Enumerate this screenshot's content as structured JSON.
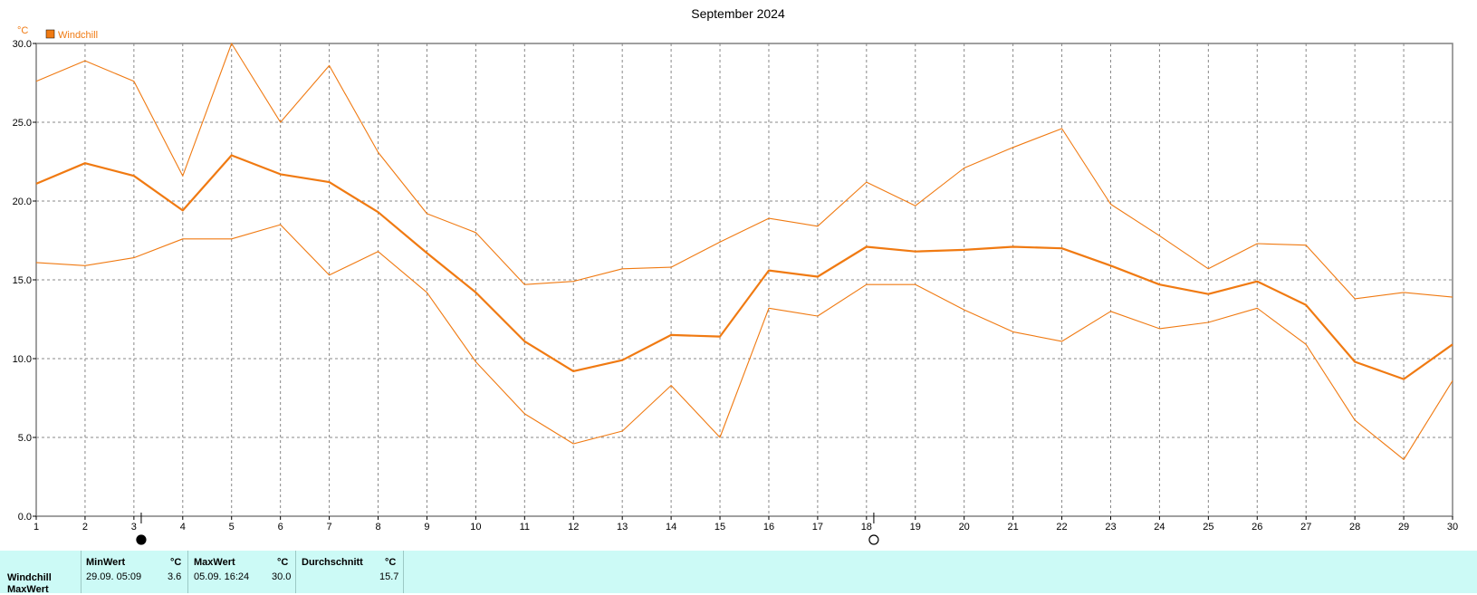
{
  "chart_data": {
    "type": "line",
    "title": "September 2024",
    "ylabel": "°C",
    "legend": [
      "Windchill"
    ],
    "legend_position": "top-left",
    "ylim": [
      0,
      30
    ],
    "xlim": [
      1,
      30
    ],
    "yticks": [
      "0.0",
      "5.0",
      "10.0",
      "15.0",
      "20.0",
      "25.0",
      "30.0"
    ],
    "x": [
      1,
      2,
      3,
      4,
      5,
      6,
      7,
      8,
      9,
      10,
      11,
      12,
      13,
      14,
      15,
      16,
      17,
      18,
      19,
      20,
      21,
      22,
      23,
      24,
      25,
      26,
      27,
      28,
      29,
      30
    ],
    "grid": true,
    "series": [
      {
        "name": "Windchill",
        "role": "avg",
        "values": [
          21.1,
          22.4,
          21.6,
          19.4,
          22.9,
          21.7,
          21.2,
          19.3,
          16.7,
          14.2,
          11.1,
          9.2,
          9.9,
          11.5,
          11.4,
          15.6,
          15.2,
          17.1,
          16.8,
          16.9,
          17.1,
          17.0,
          15.9,
          14.7,
          14.1,
          14.9,
          13.4,
          9.8,
          8.7,
          10.9
        ]
      },
      {
        "role": "max",
        "values": [
          27.6,
          28.9,
          27.6,
          21.6,
          30.0,
          25.0,
          28.6,
          23.1,
          19.2,
          18.0,
          14.7,
          14.9,
          15.7,
          15.8,
          17.4,
          18.9,
          18.4,
          21.2,
          19.7,
          22.1,
          23.4,
          24.6,
          19.8,
          17.8,
          15.7,
          17.3,
          17.2,
          13.8,
          14.2,
          13.9
        ]
      },
      {
        "role": "min",
        "values": [
          16.1,
          15.9,
          16.4,
          17.6,
          17.6,
          18.5,
          15.3,
          16.8,
          14.2,
          9.8,
          6.5,
          4.6,
          5.4,
          8.3,
          5.0,
          13.2,
          12.7,
          14.7,
          14.7,
          13.1,
          11.7,
          11.1,
          13.0,
          11.9,
          12.3,
          13.2,
          10.9,
          6.1,
          3.6,
          8.6
        ]
      }
    ],
    "moon_phases": [
      {
        "day": 3,
        "phase": "new-moon"
      },
      {
        "day": 18,
        "phase": "full-moon"
      }
    ]
  },
  "colors": {
    "series": "#f07a12",
    "grid": "#888888",
    "panel": "#ccfaf6"
  },
  "stats": {
    "min_header": "MinWert",
    "max_header": "MaxWert",
    "avg_header": "Durchschnitt",
    "unit": "°C",
    "row_label": "Windchill",
    "row_label_2": "MaxWert",
    "min_time": "29.09.  05:09",
    "min_value": "3.6",
    "max_time": "05.09.  16:24",
    "max_value": "30.0",
    "avg_value": "15.7"
  }
}
